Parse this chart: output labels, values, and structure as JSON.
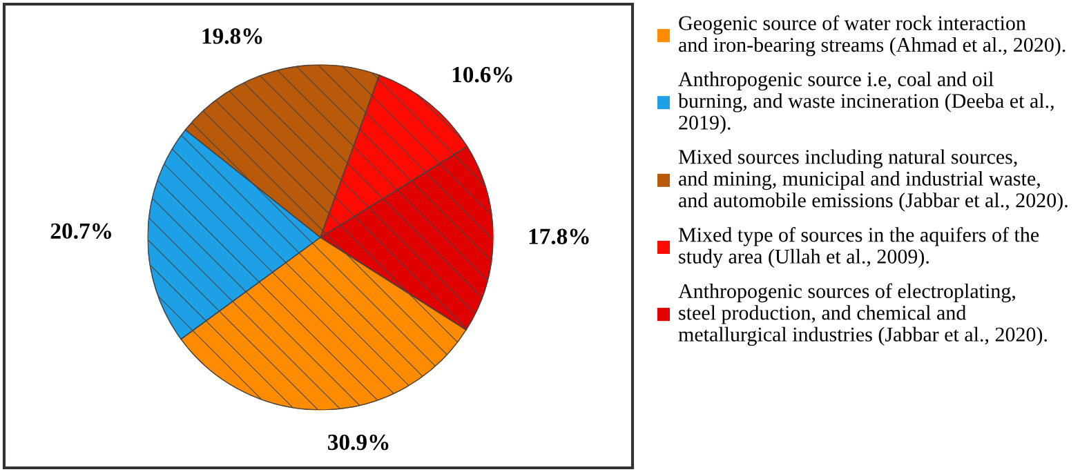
{
  "chart_data": {
    "type": "pie",
    "categories": [
      "Geogenic source of water rock interaction\nand iron-bearing streams (Ahmad et al., 2020).",
      "Anthropogenic source i.e, coal and oil\nburning, and waste incineration (Deeba et al.,\n2019).",
      "Mixed sources including natural sources,\nand mining, municipal and industrial waste,\nand automobile emissions (Jabbar et al., 2020).",
      "Mixed type of sources in the aquifers of the\nstudy area (Ullah et al., 2009).",
      "Anthropogenic sources of electroplating,\nsteel production, and chemical and\nmetallurgical industries (Jabbar et al., 2020)."
    ],
    "values": [
      30.9,
      20.7,
      19.8,
      10.6,
      17.8
    ],
    "value_labels": [
      "30.9%",
      "20.7%",
      "19.8%",
      "10.6%",
      "17.8%"
    ],
    "colors": [
      "#ff8c00",
      "#1ea0e6",
      "#b85a0a",
      "#ff0a00",
      "#e00000"
    ],
    "legend": "right"
  }
}
